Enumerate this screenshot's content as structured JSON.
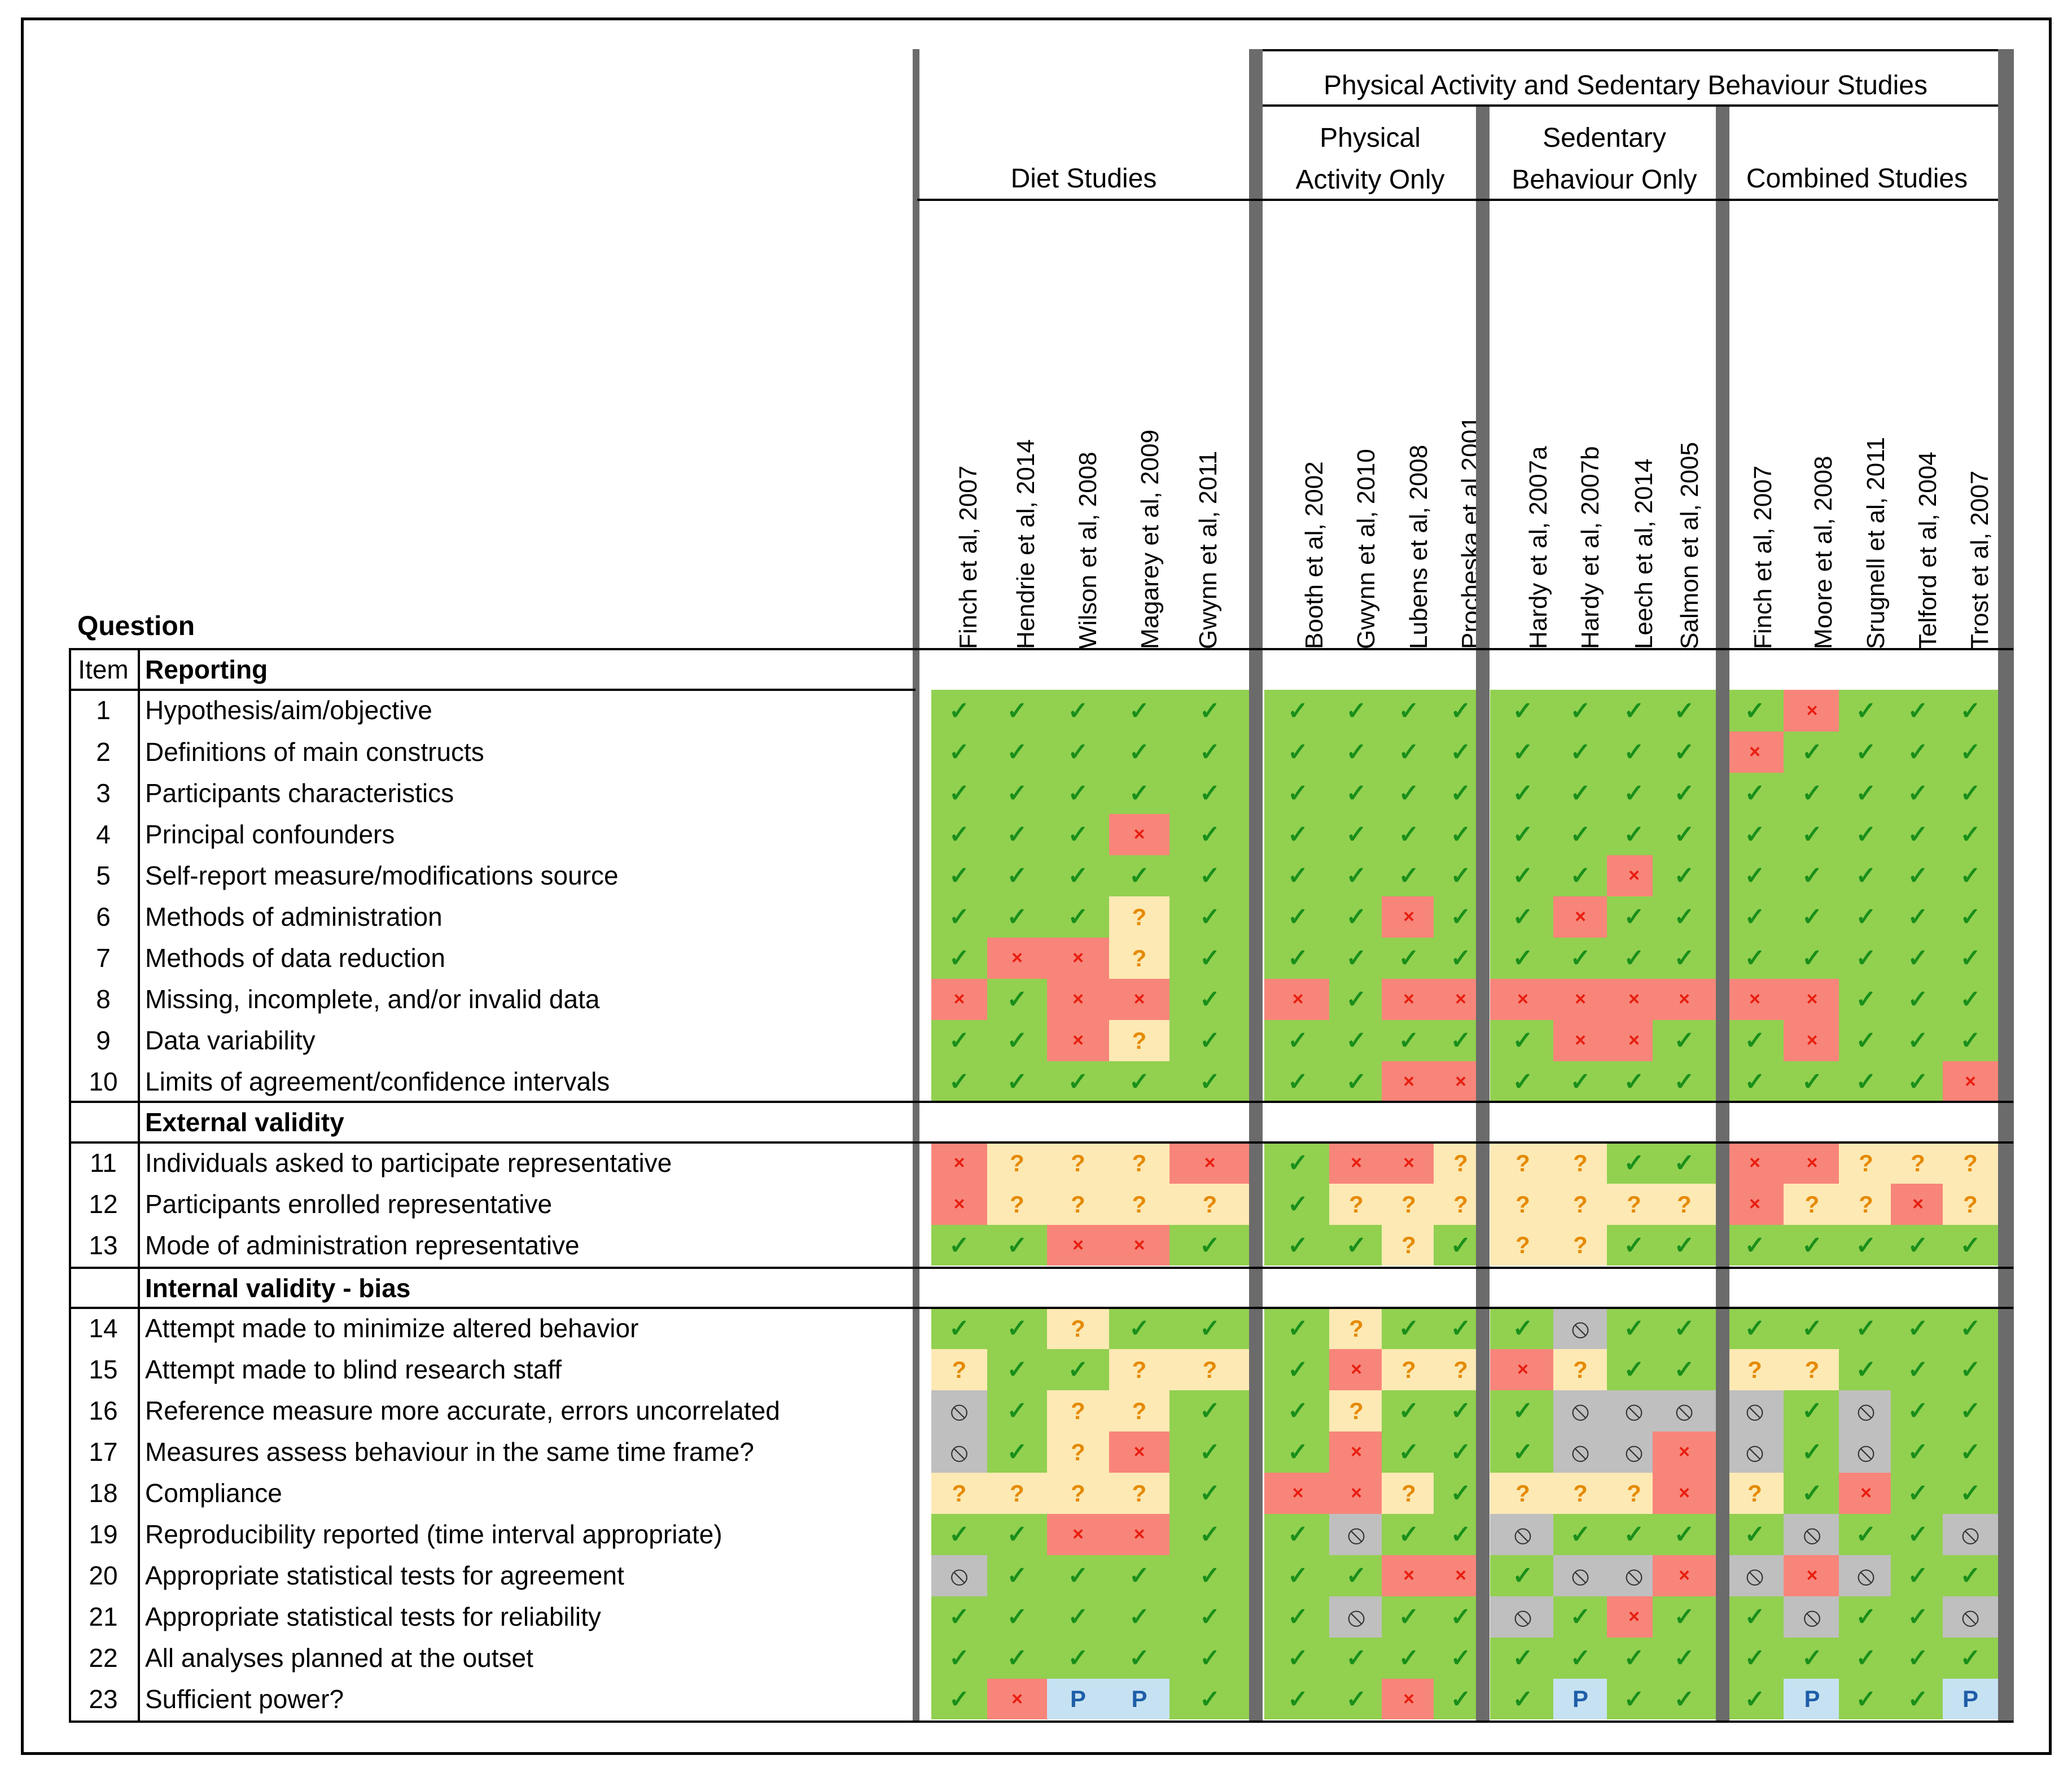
{
  "headers": {
    "physical_sedentary": "Physical Activity and Sedentary Behaviour Studies",
    "diet": "Diet Studies",
    "physical_only": [
      "Physical",
      "Activity Only"
    ],
    "sedentary_only": [
      "Sedentary",
      "Behaviour Only"
    ],
    "combined": "Combined Studies",
    "question": "Question",
    "item": "Item"
  },
  "studies": [
    "Finch et al, 2007",
    "Hendrie et al, 2014",
    "Wilson et al, 2008",
    "Magarey et al, 2009",
    "Gwynn et al, 2011",
    "Booth et al, 2002",
    "Gwynn et al, 2010",
    "Lubens et al, 2008",
    "Procheska et al 2001",
    "Hardy et al, 2007a",
    "Hardy et al, 2007b",
    "Leech et al, 2014",
    "Salmon et al, 2005",
    "Finch et al, 2007",
    "Moore et al, 2008",
    "Srugnell et al, 2011",
    "Telford et al, 2004",
    "Trost et al, 2007"
  ],
  "sections": [
    "Reporting",
    "External validity",
    "Internal validity - bias"
  ],
  "symbols": {
    "Y": "✓",
    "N": "×",
    "U": "?",
    "X": "⦸",
    "P": "P"
  },
  "colors": {
    "check_bg": "#92d050",
    "cross_bg": "#f8857a",
    "unknown_bg": "#fde9b4",
    "na_bg": "#bfbfbf",
    "partial_bg": "#c6e2f2"
  },
  "rows": [
    {
      "item": "1",
      "question": "Hypothesis/aim/objective",
      "ratings": [
        "Y",
        "Y",
        "Y",
        "Y",
        "Y",
        "Y",
        "Y",
        "Y",
        "Y",
        "Y",
        "Y",
        "Y",
        "Y",
        "Y",
        "N",
        "Y",
        "Y",
        "Y"
      ]
    },
    {
      "item": "2",
      "question": "Definitions of main constructs",
      "ratings": [
        "Y",
        "Y",
        "Y",
        "Y",
        "Y",
        "Y",
        "Y",
        "Y",
        "Y",
        "Y",
        "Y",
        "Y",
        "Y",
        "N",
        "Y",
        "Y",
        "Y",
        "Y"
      ]
    },
    {
      "item": "3",
      "question": "Participants characteristics",
      "ratings": [
        "Y",
        "Y",
        "Y",
        "Y",
        "Y",
        "Y",
        "Y",
        "Y",
        "Y",
        "Y",
        "Y",
        "Y",
        "Y",
        "Y",
        "Y",
        "Y",
        "Y",
        "Y"
      ]
    },
    {
      "item": "4",
      "question": "Principal confounders",
      "ratings": [
        "Y",
        "Y",
        "Y",
        "N",
        "Y",
        "Y",
        "Y",
        "Y",
        "Y",
        "Y",
        "Y",
        "Y",
        "Y",
        "Y",
        "Y",
        "Y",
        "Y",
        "Y"
      ]
    },
    {
      "item": "5",
      "question": "Self-report measure/modifications source",
      "ratings": [
        "Y",
        "Y",
        "Y",
        "Y",
        "Y",
        "Y",
        "Y",
        "Y",
        "Y",
        "Y",
        "Y",
        "N",
        "Y",
        "Y",
        "Y",
        "Y",
        "Y",
        "Y"
      ]
    },
    {
      "item": "6",
      "question": "Methods of administration",
      "ratings": [
        "Y",
        "Y",
        "Y",
        "U",
        "Y",
        "Y",
        "Y",
        "N",
        "Y",
        "Y",
        "N",
        "Y",
        "Y",
        "Y",
        "Y",
        "Y",
        "Y",
        "Y"
      ]
    },
    {
      "item": "7",
      "question": "Methods of data reduction",
      "ratings": [
        "Y",
        "N",
        "N",
        "U",
        "Y",
        "Y",
        "Y",
        "Y",
        "Y",
        "Y",
        "Y",
        "Y",
        "Y",
        "Y",
        "Y",
        "Y",
        "Y",
        "Y"
      ]
    },
    {
      "item": "8",
      "question": "Missing, incomplete, and/or invalid data",
      "ratings": [
        "N",
        "Y",
        "N",
        "N",
        "Y",
        "N",
        "Y",
        "N",
        "N",
        "N",
        "N",
        "N",
        "N",
        "N",
        "N",
        "Y",
        "Y",
        "Y"
      ]
    },
    {
      "item": "9",
      "question": "Data variability",
      "ratings": [
        "Y",
        "Y",
        "N",
        "U",
        "Y",
        "Y",
        "Y",
        "Y",
        "Y",
        "Y",
        "N",
        "N",
        "Y",
        "Y",
        "N",
        "Y",
        "Y",
        "Y"
      ]
    },
    {
      "item": "10",
      "question": "Limits of agreement/confidence intervals",
      "ratings": [
        "Y",
        "Y",
        "Y",
        "Y",
        "Y",
        "Y",
        "Y",
        "N",
        "N",
        "Y",
        "Y",
        "Y",
        "Y",
        "Y",
        "Y",
        "Y",
        "Y",
        "N"
      ]
    },
    {
      "item": "11",
      "question": "Individuals asked to participate representative",
      "ratings": [
        "N",
        "U",
        "U",
        "U",
        "N",
        "Y",
        "N",
        "N",
        "U",
        "U",
        "U",
        "Y",
        "Y",
        "N",
        "N",
        "U",
        "U",
        "U"
      ]
    },
    {
      "item": "12",
      "question": "Participants enrolled representative",
      "ratings": [
        "N",
        "U",
        "U",
        "U",
        "U",
        "Y",
        "U",
        "U",
        "U",
        "U",
        "U",
        "U",
        "U",
        "N",
        "U",
        "U",
        "N",
        "U"
      ]
    },
    {
      "item": "13",
      "question": "Mode of administration representative",
      "ratings": [
        "Y",
        "Y",
        "N",
        "N",
        "Y",
        "Y",
        "Y",
        "U",
        "Y",
        "U",
        "U",
        "Y",
        "Y",
        "Y",
        "Y",
        "Y",
        "Y",
        "Y"
      ]
    },
    {
      "item": "14",
      "question": "Attempt made to minimize altered behavior",
      "ratings": [
        "Y",
        "Y",
        "U",
        "Y",
        "Y",
        "Y",
        "U",
        "Y",
        "Y",
        "Y",
        "X",
        "Y",
        "Y",
        "Y",
        "Y",
        "Y",
        "Y",
        "Y"
      ]
    },
    {
      "item": "15",
      "question": "Attempt made to blind research staff",
      "ratings": [
        "U",
        "Y",
        "Y",
        "U",
        "U",
        "Y",
        "N",
        "U",
        "U",
        "N",
        "U",
        "Y",
        "Y",
        "U",
        "U",
        "Y",
        "Y",
        "Y"
      ]
    },
    {
      "item": "16",
      "question": "Reference measure more accurate, errors uncorrelated",
      "ratings": [
        "X",
        "Y",
        "U",
        "U",
        "Y",
        "Y",
        "U",
        "Y",
        "Y",
        "Y",
        "X",
        "X",
        "X",
        "X",
        "Y",
        "X",
        "Y",
        "Y"
      ]
    },
    {
      "item": "17",
      "question": "Measures assess behaviour in the same time frame?",
      "ratings": [
        "X",
        "Y",
        "U",
        "N",
        "Y",
        "Y",
        "N",
        "Y",
        "Y",
        "Y",
        "X",
        "X",
        "N",
        "X",
        "Y",
        "X",
        "Y",
        "Y"
      ]
    },
    {
      "item": "18",
      "question": "Compliance",
      "ratings": [
        "U",
        "U",
        "U",
        "U",
        "Y",
        "N",
        "N",
        "U",
        "Y",
        "U",
        "U",
        "U",
        "N",
        "U",
        "Y",
        "N",
        "Y",
        "Y"
      ]
    },
    {
      "item": "19",
      "question": "Reproducibility reported (time interval appropriate)",
      "ratings": [
        "Y",
        "Y",
        "N",
        "N",
        "Y",
        "Y",
        "X",
        "Y",
        "Y",
        "X",
        "Y",
        "Y",
        "Y",
        "Y",
        "X",
        "Y",
        "Y",
        "X"
      ]
    },
    {
      "item": "20",
      "question": "Appropriate statistical tests for agreement",
      "ratings": [
        "X",
        "Y",
        "Y",
        "Y",
        "Y",
        "Y",
        "Y",
        "N",
        "N",
        "Y",
        "X",
        "X",
        "N",
        "X",
        "N",
        "X",
        "Y",
        "Y"
      ]
    },
    {
      "item": "21",
      "question": "Appropriate statistical tests for reliability",
      "ratings": [
        "Y",
        "Y",
        "Y",
        "Y",
        "Y",
        "Y",
        "X",
        "Y",
        "Y",
        "X",
        "Y",
        "N",
        "Y",
        "Y",
        "X",
        "Y",
        "Y",
        "X"
      ]
    },
    {
      "item": "22",
      "question": "All analyses planned at the outset",
      "ratings": [
        "Y",
        "Y",
        "Y",
        "Y",
        "Y",
        "Y",
        "Y",
        "Y",
        "Y",
        "Y",
        "Y",
        "Y",
        "Y",
        "Y",
        "Y",
        "Y",
        "Y",
        "Y"
      ]
    },
    {
      "item": "23",
      "question": "Sufficient power?",
      "ratings": [
        "Y",
        "N",
        "P",
        "P",
        "Y",
        "Y",
        "Y",
        "N",
        "Y",
        "Y",
        "P",
        "Y",
        "Y",
        "Y",
        "P",
        "Y",
        "Y",
        "P"
      ]
    }
  ]
}
